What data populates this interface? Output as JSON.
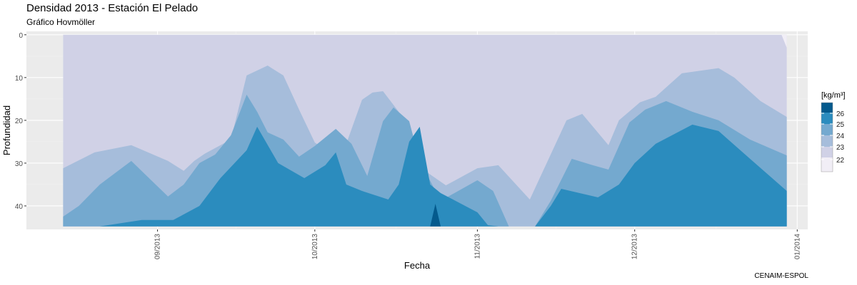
{
  "title": "Densidad 2013 - Estación El Pelado",
  "subtitle": "Gráfico Hovmöller",
  "caption": "CENAIM-ESPOL",
  "chart_data": {
    "type": "area",
    "xlabel": "Fecha",
    "ylabel": "Profundidad",
    "xlim": [
      "2013-08-07",
      "2014-01-03"
    ],
    "ylim": [
      45.5,
      -0.8
    ],
    "x_ticks": [
      "2013-09-01",
      "2013-10-01",
      "2013-11-01",
      "2013-12-01",
      "2014-01-01"
    ],
    "x_tick_labels": [
      "09/2013",
      "10/2013",
      "11/2013",
      "12/2013",
      "01/2014"
    ],
    "y_ticks": [
      0,
      10,
      20,
      30,
      40
    ],
    "y_tick_labels": [
      "0",
      "10",
      "20",
      "30",
      "40"
    ],
    "grid": true,
    "legend": {
      "title": "[kg/m³]",
      "position": "right",
      "labels": [
        "26",
        "25",
        "24",
        "23",
        "22"
      ]
    },
    "colors": {
      "panel_bg": "#EBEBEB",
      "grid_major": "#FFFFFF",
      "grid_minor": "#F3F3F3",
      "lt23": "#D0D1E6",
      "lt22": "#F1EEF6",
      "b23_24": "#A6BDDB",
      "b24_25": "#74A9CF",
      "b25_26": "#2B8CBE",
      "ge26": "#045A8D"
    },
    "depth_bottom": 44.8,
    "x_start": "2013-08-14",
    "x_end": "2013-12-30",
    "contours": [
      {
        "level": 23,
        "side": "top",
        "x": [
          "2013-08-14",
          "2013-08-20",
          "2013-08-27",
          "2013-09-03",
          "2013-09-06",
          "2013-09-08",
          "2013-09-10",
          "2013-09-15",
          "2013-09-18",
          "2013-09-22",
          "2013-09-25",
          "2013-09-28",
          "2013-10-01",
          "2013-10-05",
          "2013-10-07",
          "2013-10-10",
          "2013-10-12",
          "2013-10-14",
          "2013-10-17",
          "2013-10-19",
          "2013-10-22",
          "2013-10-26",
          "2013-11-01",
          "2013-11-05",
          "2013-11-11",
          "2013-11-18",
          "2013-11-21",
          "2013-11-26",
          "2013-11-28",
          "2013-12-02",
          "2013-12-05",
          "2013-12-10",
          "2013-12-17",
          "2013-12-20",
          "2013-12-25",
          "2013-12-30"
        ],
        "y": [
          31.2,
          27.5,
          25.8,
          29.5,
          31.8,
          29.5,
          27.8,
          24.5,
          9.5,
          7.2,
          9.5,
          17.5,
          25.2,
          28.5,
          25.5,
          15.2,
          13.5,
          13.2,
          18.0,
          22.8,
          31.8,
          35.2,
          31.2,
          30.5,
          38.5,
          20.0,
          18.5,
          25.8,
          20.0,
          15.8,
          14.5,
          9.0,
          7.8,
          10.0,
          15.5,
          19.2
        ]
      },
      {
        "level": 24,
        "side": "top",
        "x": [
          "2013-08-14",
          "2013-08-17",
          "2013-08-21",
          "2013-08-27",
          "2013-09-03",
          "2013-09-06",
          "2013-09-09",
          "2013-09-12",
          "2013-09-15",
          "2013-09-18",
          "2013-09-20",
          "2013-09-22",
          "2013-09-25",
          "2013-09-28",
          "2013-10-01",
          "2013-10-05",
          "2013-10-08",
          "2013-10-11",
          "2013-10-14",
          "2013-10-16",
          "2013-10-19",
          "2013-10-21",
          "2013-10-25",
          "2013-11-01",
          "2013-11-04",
          "2013-11-07",
          "2013-11-12",
          "2013-11-15",
          "2013-11-19",
          "2013-11-23",
          "2013-11-26",
          "2013-11-30",
          "2013-12-03",
          "2013-12-07",
          "2013-12-12",
          "2013-12-17",
          "2013-12-23",
          "2013-12-30"
        ],
        "y": [
          42.5,
          40.0,
          35.0,
          29.5,
          37.8,
          35.0,
          30.0,
          28.0,
          23.5,
          14.0,
          18.0,
          22.8,
          24.5,
          28.5,
          26.0,
          22.0,
          25.5,
          33.0,
          20.2,
          17.0,
          20.2,
          29.5,
          38.8,
          34.0,
          36.5,
          44.8,
          44.8,
          38.8,
          29.0,
          30.5,
          31.5,
          20.5,
          17.5,
          15.5,
          18.0,
          20.0,
          24.5,
          28.2
        ]
      },
      {
        "level": 25,
        "side": "top",
        "x": [
          "2013-08-21",
          "2013-08-29",
          "2013-09-04",
          "2013-09-09",
          "2013-09-13",
          "2013-09-18",
          "2013-09-20",
          "2013-09-24",
          "2013-09-29",
          "2013-10-03",
          "2013-10-05",
          "2013-10-07",
          "2013-10-10",
          "2013-10-15",
          "2013-10-17",
          "2013-10-19",
          "2013-10-21",
          "2013-10-23",
          "2013-10-25",
          "2013-11-01",
          "2013-11-03",
          "2013-11-05",
          "2013-11-12",
          "2013-11-15",
          "2013-11-17",
          "2013-11-24",
          "2013-11-28",
          "2013-12-01",
          "2013-12-05",
          "2013-12-12",
          "2013-12-17",
          "2013-12-23",
          "2013-12-30"
        ],
        "y": [
          44.8,
          43.3,
          43.3,
          40.0,
          33.5,
          27.0,
          21.5,
          30.0,
          33.5,
          30.5,
          27.5,
          35.0,
          36.5,
          38.5,
          35.0,
          25.0,
          21.5,
          35.0,
          37.0,
          41.5,
          44.5,
          44.8,
          44.8,
          40.0,
          36.0,
          38.0,
          35.0,
          30.0,
          25.5,
          21.0,
          22.5,
          29.0,
          36.5
        ]
      },
      {
        "level": 26,
        "side": "top",
        "x": [
          "2013-10-23",
          "2013-10-24",
          "2013-10-25"
        ],
        "y": [
          44.8,
          39.5,
          44.8
        ]
      },
      {
        "level": 22,
        "side": "right",
        "x": [
          "2013-12-29",
          "2013-12-30",
          "2013-12-30"
        ],
        "y": [
          0,
          3,
          10
        ]
      }
    ]
  }
}
